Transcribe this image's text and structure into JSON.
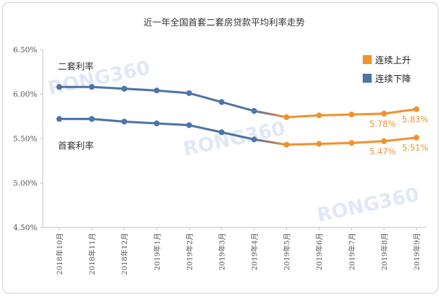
{
  "chart_data": {
    "type": "line",
    "title": "近一年全国首套二套房贷款平均利率走势",
    "categories": [
      "2018年10月",
      "2018年11月",
      "2018年12月",
      "2019年1月",
      "2019年2月",
      "2019年3月",
      "2019年4月",
      "2019年5月",
      "2019年6月",
      "2019年7月",
      "2019年8月",
      "2019年9月"
    ],
    "yticks": [
      "6.50%",
      "6.00%",
      "5.50%",
      "5.00%",
      "4.50%"
    ],
    "ylim": [
      4.5,
      6.5
    ],
    "series": [
      {
        "name": "二套利率",
        "values": [
          6.08,
          6.08,
          6.06,
          6.04,
          6.01,
          5.91,
          5.81,
          5.74,
          5.76,
          5.77,
          5.78,
          5.83
        ]
      },
      {
        "name": "首套利率",
        "values": [
          5.72,
          5.72,
          5.69,
          5.67,
          5.65,
          5.57,
          5.49,
          5.43,
          5.44,
          5.45,
          5.47,
          5.51
        ]
      }
    ],
    "legend": [
      {
        "label": "连续上升",
        "color": "#f0922f"
      },
      {
        "label": "连续下降",
        "color": "#4f74a6"
      }
    ],
    "data_labels": [
      {
        "series": 0,
        "index": 10,
        "text": "5.78%"
      },
      {
        "series": 0,
        "index": 11,
        "text": "5.83%"
      },
      {
        "series": 1,
        "index": 10,
        "text": "5.47%"
      },
      {
        "series": 1,
        "index": 11,
        "text": "5.51%"
      }
    ],
    "trend_change_index": 7,
    "grid": false,
    "legend_position": "top-right",
    "colors": {
      "rising": "#f0922f",
      "falling": "#4f74a6",
      "axis": "#bfbfbf"
    }
  },
  "watermark": "RONG360"
}
